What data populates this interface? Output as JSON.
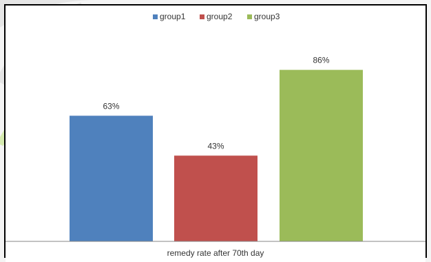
{
  "chart_data": {
    "type": "bar",
    "categories": [
      "remedy rate after 70th day"
    ],
    "series": [
      {
        "name": "group1",
        "values": [
          63
        ],
        "label": "63%",
        "color": "#4F81BD"
      },
      {
        "name": "group2",
        "values": [
          43
        ],
        "label": "43%",
        "color": "#C0504D"
      },
      {
        "name": "group3",
        "values": [
          86
        ],
        "label": "86%",
        "color": "#9BBB59"
      }
    ],
    "xlabel": "remedy rate after 70th day",
    "ylabel": "",
    "ylim": [
      0,
      100
    ],
    "grid": false,
    "legend_position": "top"
  }
}
